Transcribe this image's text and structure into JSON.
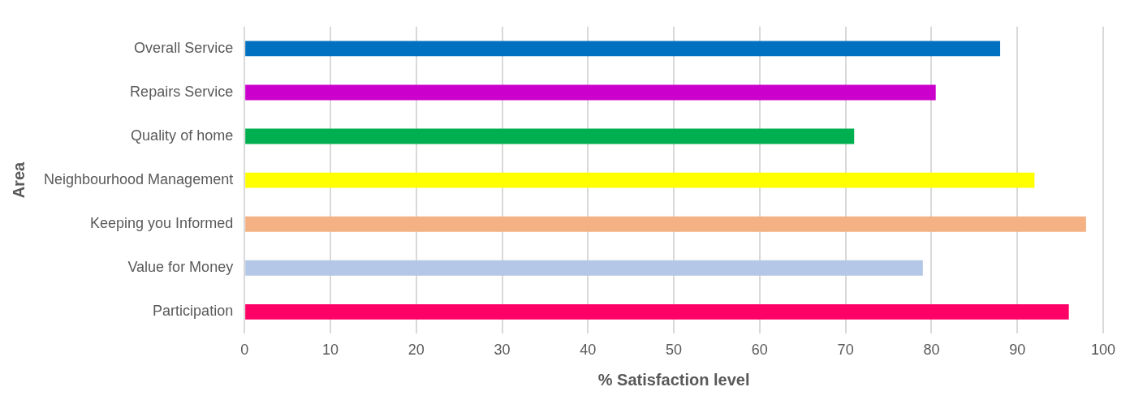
{
  "chart_data": {
    "type": "bar",
    "orientation": "horizontal",
    "xlabel": "% Satisfaction level",
    "ylabel": "Area",
    "categories": [
      "Overall Service",
      "Repairs Service",
      "Quality of home",
      "Neighbourhood Management",
      "Keeping you Informed",
      "Value for Money",
      "Participation"
    ],
    "values": [
      88,
      80.5,
      71,
      92,
      98,
      79,
      96
    ],
    "colors": [
      "#0070c0",
      "#cc00cc",
      "#00b050",
      "#ffff00",
      "#f4b183",
      "#b4c7e7",
      "#ff0066"
    ],
    "xlim": [
      0,
      100
    ],
    "xticks": [
      0,
      10,
      20,
      30,
      40,
      50,
      60,
      70,
      80,
      90,
      100
    ],
    "grid": "x",
    "legend": false
  }
}
